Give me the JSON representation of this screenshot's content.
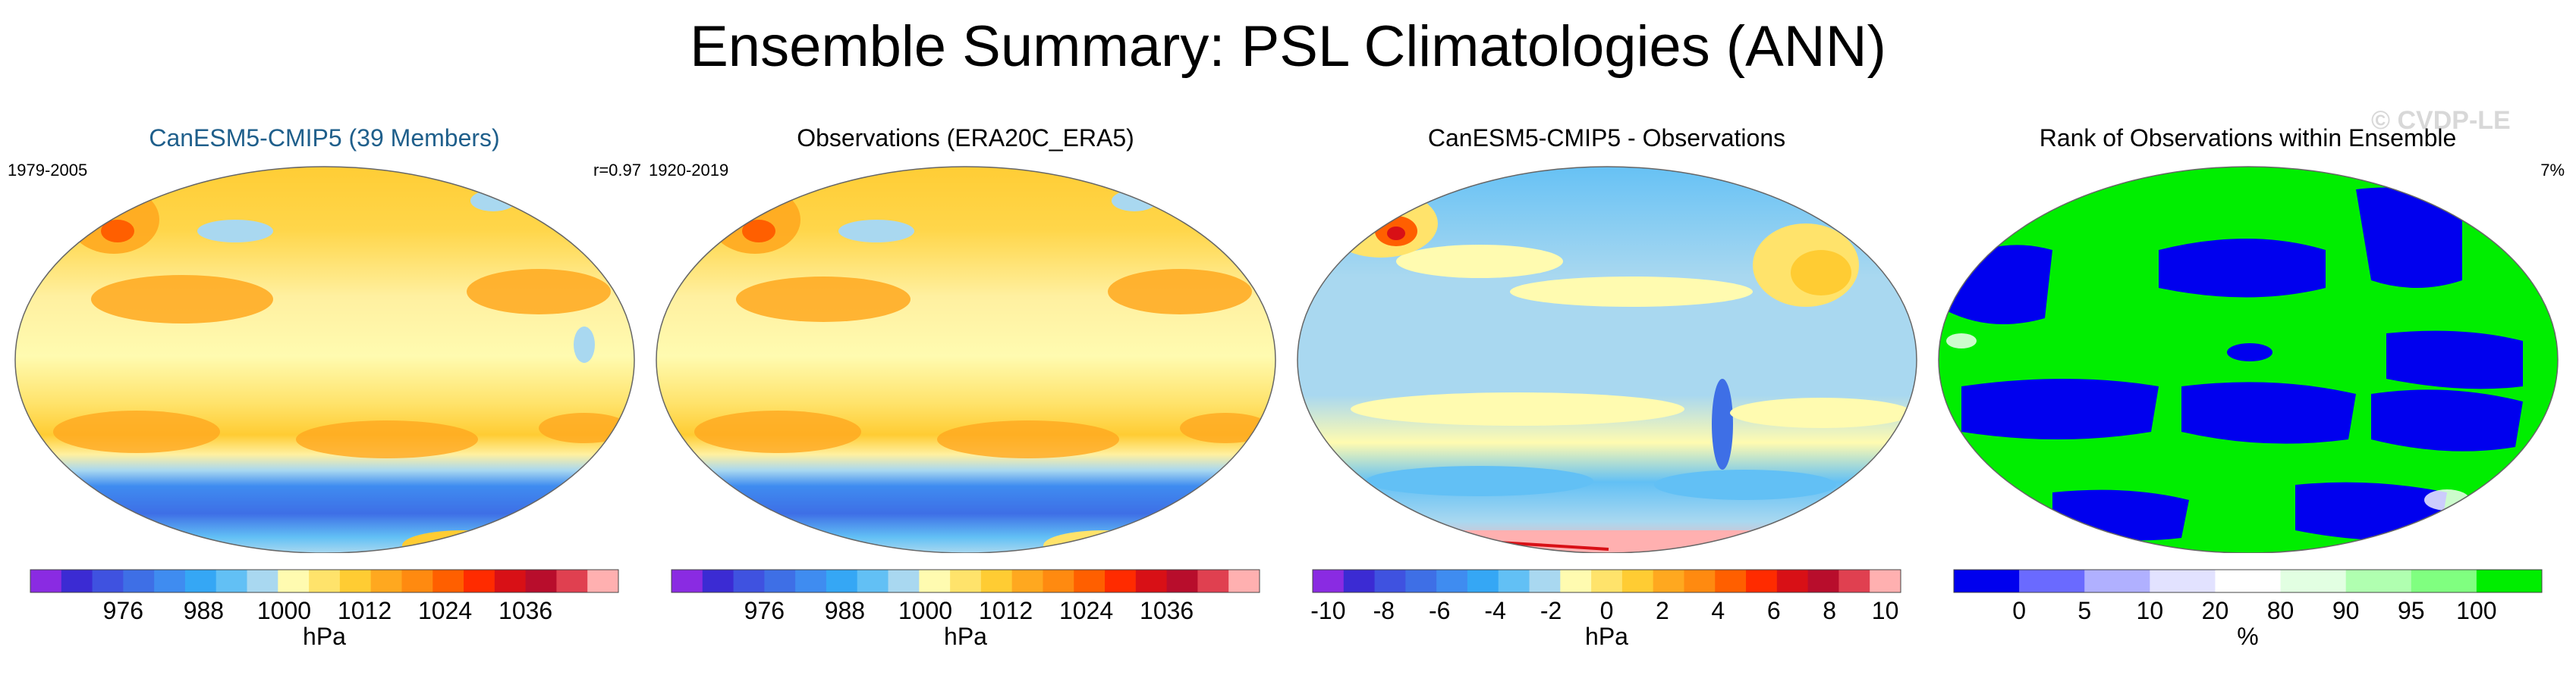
{
  "figure": {
    "title": "Ensemble Summary: PSL Climatologies (ANN)",
    "watermark": "© CVDP-LE"
  },
  "chart_data": [
    {
      "type": "heatmap",
      "title": "CanESM5-CMIP5 (39 Members)",
      "period": "1979-2005",
      "stat": "r=0.97",
      "colorbar": {
        "unit": "hPa",
        "ticks": [
          "976",
          "988",
          "1000",
          "1012",
          "1024",
          "1036"
        ],
        "colors": [
          "#8a2be2",
          "#3b2bd3",
          "#3f52e0",
          "#3e6fe6",
          "#3f8cf0",
          "#35a7f5",
          "#62c0f5",
          "#a9d8f0",
          "#fffbb0",
          "#ffe36b",
          "#ffcc33",
          "#ffa81f",
          "#ff8a10",
          "#ff5f00",
          "#ff2b00",
          "#d81016",
          "#b80d2c",
          "#e04050",
          "#ffb0b0"
        ]
      }
    },
    {
      "type": "heatmap",
      "title": "Observations (ERA20C_ERA5)",
      "period": "1920-2019",
      "stat": "",
      "colorbar": {
        "unit": "hPa",
        "ticks": [
          "976",
          "988",
          "1000",
          "1012",
          "1024",
          "1036"
        ],
        "colors": [
          "#8a2be2",
          "#3b2bd3",
          "#3f52e0",
          "#3e6fe6",
          "#3f8cf0",
          "#35a7f5",
          "#62c0f5",
          "#a9d8f0",
          "#fffbb0",
          "#ffe36b",
          "#ffcc33",
          "#ffa81f",
          "#ff8a10",
          "#ff5f00",
          "#ff2b00",
          "#d81016",
          "#b80d2c",
          "#e04050",
          "#ffb0b0"
        ]
      }
    },
    {
      "type": "heatmap",
      "title": "CanESM5-CMIP5 - Observations",
      "period": "",
      "stat": "",
      "colorbar": {
        "unit": "hPa",
        "ticks": [
          "-10",
          "-8",
          "-6",
          "-4",
          "-2",
          "0",
          "2",
          "4",
          "6",
          "8",
          "10"
        ],
        "colors": [
          "#8a2be2",
          "#3b2bd3",
          "#3f52e0",
          "#3e6fe6",
          "#3f8cf0",
          "#35a7f5",
          "#62c0f5",
          "#a9d8f0",
          "#fffbb0",
          "#ffe36b",
          "#ffcc33",
          "#ffa81f",
          "#ff8a10",
          "#ff5f00",
          "#ff2b00",
          "#d81016",
          "#b80d2c",
          "#e04050",
          "#ffb0b0"
        ]
      }
    },
    {
      "type": "heatmap",
      "title": "Rank of Observations within Ensemble",
      "period": "",
      "stat": "7%",
      "colorbar": {
        "unit": "%",
        "ticks": [
          "0",
          "5",
          "10",
          "20",
          "80",
          "90",
          "95",
          "100"
        ],
        "colors": [
          "#0000ee",
          "#6a6aff",
          "#b0b0ff",
          "#e2e2ff",
          "#ffffff",
          "#e2ffe2",
          "#b0ffb0",
          "#80ff80",
          "#00ee00"
        ]
      }
    }
  ]
}
